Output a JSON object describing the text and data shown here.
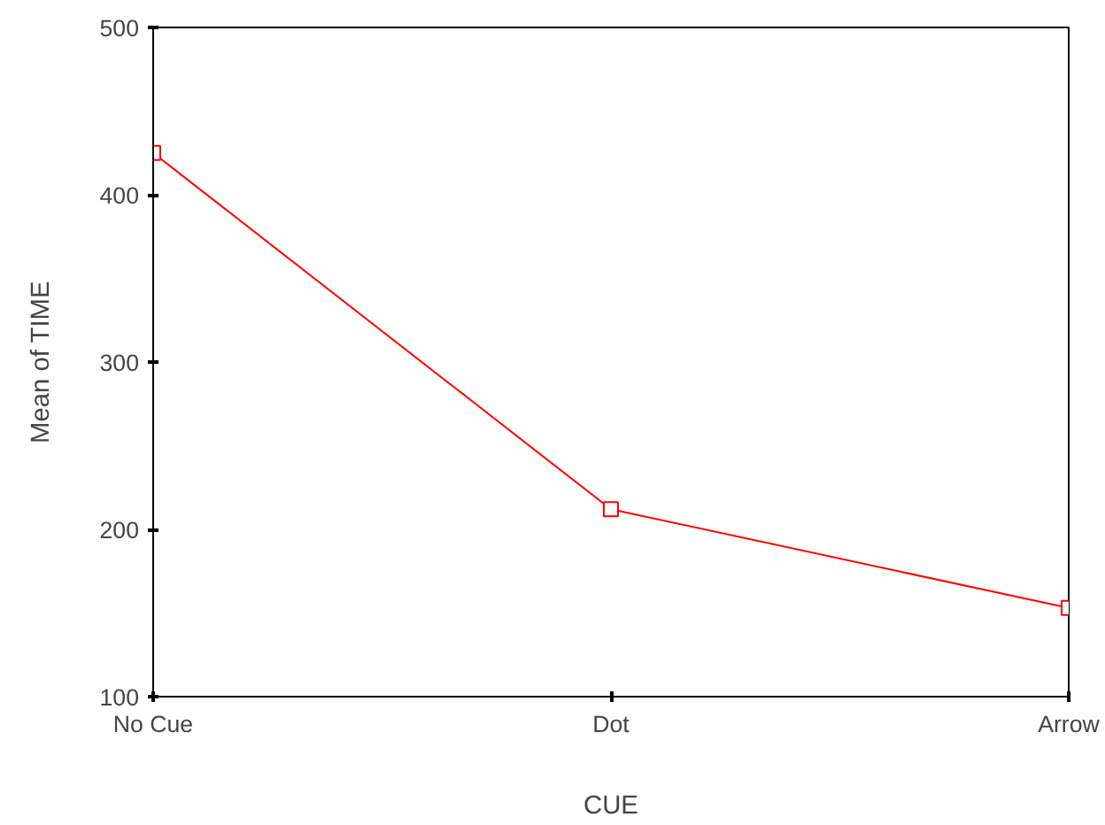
{
  "chart_data": {
    "type": "line",
    "xlabel": "CUE",
    "ylabel": "Mean of TIME",
    "categories": [
      "No Cue",
      "Dot",
      "Arrow"
    ],
    "series": [
      {
        "color": "#ff0000",
        "values": [
          425,
          212,
          153
        ]
      }
    ],
    "ylim": [
      100,
      500
    ],
    "yticks": [
      100,
      200,
      300,
      400,
      500
    ],
    "grid": false,
    "marker": "square",
    "line_style": "solid"
  }
}
